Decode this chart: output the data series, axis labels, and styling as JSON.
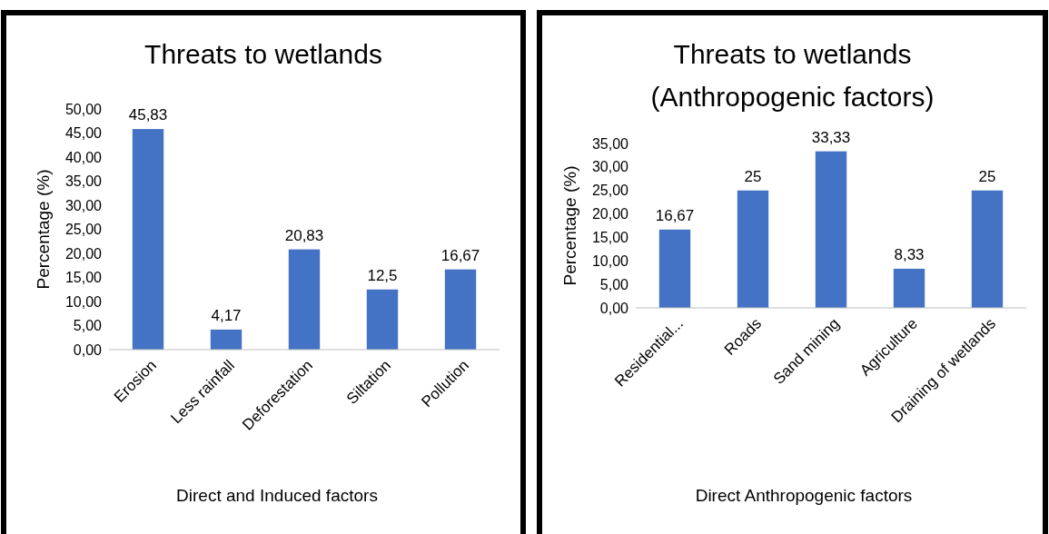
{
  "chart_data": [
    {
      "type": "bar",
      "title": "Threats to wetlands",
      "xlabel": "Direct and Induced factors",
      "ylabel": "Percentage (%)",
      "categories": [
        "Erosion",
        "Less rainfall",
        "Deforestation",
        "Siltation",
        "Pollution"
      ],
      "values": [
        45.83,
        4.17,
        20.83,
        12.5,
        16.67
      ],
      "value_labels": [
        "45,83",
        "4,17",
        "20,83",
        "12,5",
        "16,67"
      ],
      "color": "#4472c4",
      "ylim": [
        0,
        50
      ],
      "yticks": [
        {
          "value": 0,
          "label": "0,00"
        },
        {
          "value": 5,
          "label": "5,00"
        },
        {
          "value": 10,
          "label": "10,00"
        },
        {
          "value": 15,
          "label": "15,00"
        },
        {
          "value": 20,
          "label": "20,00"
        },
        {
          "value": 25,
          "label": "25,00"
        },
        {
          "value": 30,
          "label": "30,00"
        },
        {
          "value": 35,
          "label": "35,00"
        },
        {
          "value": 40,
          "label": "40,00"
        },
        {
          "value": 45,
          "label": "45,00"
        },
        {
          "value": 50,
          "label": "50,00"
        }
      ],
      "grid": false
    },
    {
      "type": "bar",
      "title": "Threats to wetlands (Anthropogenic factors)",
      "xlabel": "Direct Anthropogenic factors",
      "ylabel": "Percentage (%)",
      "categories": [
        "Residential...",
        "Roads",
        "Sand mining",
        "Agriculture",
        "Draining of wetlands"
      ],
      "values": [
        16.67,
        25,
        33.33,
        8.33,
        25
      ],
      "value_labels": [
        "16,67",
        "25",
        "33,33",
        "8,33",
        "25"
      ],
      "color": "#4472c4",
      "ylim": [
        0,
        35
      ],
      "yticks": [
        {
          "value": 0,
          "label": "0,00"
        },
        {
          "value": 5,
          "label": "5,00"
        },
        {
          "value": 10,
          "label": "10,00"
        },
        {
          "value": 15,
          "label": "15,00"
        },
        {
          "value": 20,
          "label": "20,00"
        },
        {
          "value": 25,
          "label": "25,00"
        },
        {
          "value": 30,
          "label": "30,00"
        },
        {
          "value": 35,
          "label": "35,00"
        }
      ],
      "grid": false
    }
  ]
}
